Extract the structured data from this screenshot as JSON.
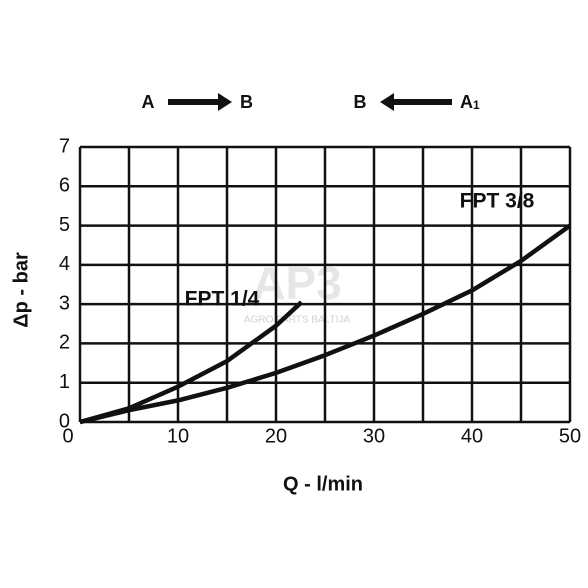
{
  "chart_data": {
    "type": "line",
    "xlabel": "Q - l/min",
    "ylabel": "Δp - bar",
    "flow_directions": [
      {
        "left": "A",
        "right": "B",
        "arrow": "right"
      },
      {
        "left": "B",
        "right": "A",
        "right_sub": "1",
        "arrow": "left"
      }
    ],
    "watermark": {
      "logo": "AP3",
      "text": "AGRO PARTS BALTIJA"
    },
    "xlim": [
      0,
      50
    ],
    "ylim": [
      0,
      7
    ],
    "xticks": [
      0,
      10,
      20,
      30,
      40,
      50
    ],
    "yticks": [
      0,
      1,
      2,
      3,
      4,
      5,
      6,
      7
    ],
    "xgrid": [
      0,
      5,
      10,
      15,
      20,
      25,
      30,
      35,
      40,
      45,
      50
    ],
    "grid": true,
    "series": [
      {
        "name": "FPT 1/4",
        "color": "#111111",
        "x": [
          0,
          5,
          10,
          15,
          20,
          22.6
        ],
        "values": [
          0,
          0.35,
          0.9,
          1.55,
          2.45,
          3.05
        ]
      },
      {
        "name": "FPT 3/8",
        "color": "#111111",
        "x": [
          0,
          5,
          10,
          15,
          20,
          25,
          30,
          35,
          40,
          45,
          50
        ],
        "values": [
          0,
          0.3,
          0.55,
          0.87,
          1.25,
          1.7,
          2.2,
          2.75,
          3.35,
          4.1,
          5.0
        ]
      }
    ]
  }
}
